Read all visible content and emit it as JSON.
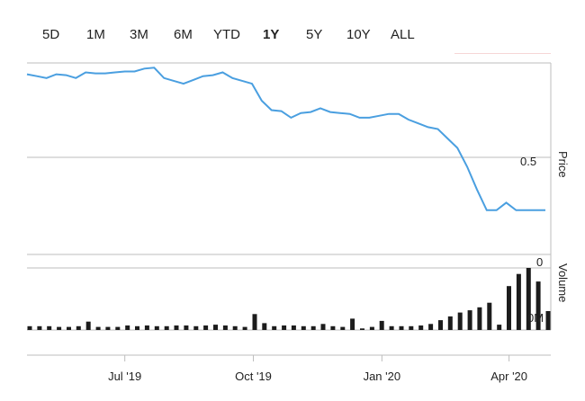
{
  "range_selector": {
    "buttons": [
      {
        "label": "5D",
        "active": false
      },
      {
        "label": "1M",
        "active": false
      },
      {
        "label": "3M",
        "active": false
      },
      {
        "label": "6M",
        "active": false
      },
      {
        "label": "YTD",
        "active": false
      },
      {
        "label": "1Y",
        "active": true
      },
      {
        "label": "5Y",
        "active": false
      },
      {
        "label": "10Y",
        "active": false
      },
      {
        "label": "ALL",
        "active": false
      }
    ]
  },
  "colors": {
    "price_line": "#4a9fe0",
    "volume_bar": "#1c1c1c",
    "grid": "#bdbdbd"
  },
  "chart_data": [
    {
      "type": "line",
      "ylabel": "Price",
      "yticks": [
        "0.5"
      ],
      "ylim": [
        0.0,
        1.0
      ],
      "x": [
        "2019-04-22",
        "2019-04-29",
        "2019-05-06",
        "2019-05-13",
        "2019-05-20",
        "2019-05-27",
        "2019-06-03",
        "2019-06-10",
        "2019-06-17",
        "2019-06-24",
        "2019-07-01",
        "2019-07-08",
        "2019-07-15",
        "2019-07-22",
        "2019-07-29",
        "2019-08-05",
        "2019-08-12",
        "2019-08-19",
        "2019-08-26",
        "2019-09-02",
        "2019-09-09",
        "2019-09-16",
        "2019-09-23",
        "2019-09-30",
        "2019-10-07",
        "2019-10-14",
        "2019-10-21",
        "2019-10-28",
        "2019-11-04",
        "2019-11-11",
        "2019-11-18",
        "2019-11-25",
        "2019-12-02",
        "2019-12-09",
        "2019-12-16",
        "2019-12-23",
        "2019-12-30",
        "2020-01-06",
        "2020-01-13",
        "2020-01-20",
        "2020-01-27",
        "2020-02-03",
        "2020-02-10",
        "2020-02-17",
        "2020-02-24",
        "2020-03-02",
        "2020-03-09",
        "2020-03-16",
        "2020-03-23",
        "2020-03-30",
        "2020-04-06",
        "2020-04-13",
        "2020-04-20",
        "2020-04-27"
      ],
      "series": [
        {
          "values": [
            0.94,
            0.93,
            0.92,
            0.94,
            0.935,
            0.92,
            0.95,
            0.945,
            0.945,
            0.95,
            0.955,
            0.955,
            0.97,
            0.975,
            0.92,
            0.905,
            0.89,
            0.91,
            0.93,
            0.935,
            0.95,
            0.92,
            0.905,
            0.89,
            0.8,
            0.75,
            0.745,
            0.71,
            0.735,
            0.74,
            0.76,
            0.74,
            0.735,
            0.73,
            0.71,
            0.71,
            0.72,
            0.73,
            0.73,
            0.7,
            0.68,
            0.66,
            0.65,
            0.6,
            0.55,
            0.45,
            0.33,
            0.22,
            0.22,
            0.26,
            0.22,
            0.22,
            0.22,
            0.22
          ]
        }
      ]
    },
    {
      "type": "bar",
      "ylabel": "Volume",
      "yticks": [
        "0",
        "0M"
      ],
      "x": [
        "2019-04-22",
        "2019-04-29",
        "2019-05-06",
        "2019-05-13",
        "2019-05-20",
        "2019-05-27",
        "2019-06-03",
        "2019-06-10",
        "2019-06-17",
        "2019-06-24",
        "2019-07-01",
        "2019-07-08",
        "2019-07-15",
        "2019-07-22",
        "2019-07-29",
        "2019-08-05",
        "2019-08-12",
        "2019-08-19",
        "2019-08-26",
        "2019-09-02",
        "2019-09-09",
        "2019-09-16",
        "2019-09-23",
        "2019-09-30",
        "2019-10-07",
        "2019-10-14",
        "2019-10-21",
        "2019-10-28",
        "2019-11-04",
        "2019-11-11",
        "2019-11-18",
        "2019-11-25",
        "2019-12-02",
        "2019-12-09",
        "2019-12-16",
        "2019-12-23",
        "2019-12-30",
        "2020-01-06",
        "2020-01-13",
        "2020-01-20",
        "2020-01-27",
        "2020-02-03",
        "2020-02-10",
        "2020-02-17",
        "2020-02-24",
        "2020-03-02",
        "2020-03-09",
        "2020-03-16",
        "2020-03-23",
        "2020-03-30",
        "2020-04-06",
        "2020-04-13",
        "2020-04-20",
        "2020-04-27"
      ],
      "series": [
        {
          "values": [
            0.05,
            0.05,
            0.05,
            0.04,
            0.04,
            0.05,
            0.11,
            0.04,
            0.04,
            0.04,
            0.06,
            0.05,
            0.06,
            0.05,
            0.05,
            0.06,
            0.06,
            0.05,
            0.06,
            0.07,
            0.06,
            0.05,
            0.04,
            0.21,
            0.09,
            0.05,
            0.06,
            0.06,
            0.05,
            0.05,
            0.08,
            0.05,
            0.04,
            0.15,
            0.02,
            0.04,
            0.12,
            0.05,
            0.05,
            0.05,
            0.06,
            0.08,
            0.13,
            0.18,
            0.23,
            0.26,
            0.3,
            0.36,
            0.07,
            0.58,
            0.74,
            0.82,
            0.64,
            0.25
          ]
        }
      ]
    }
  ],
  "x_axis": {
    "ticks": [
      {
        "label": "Jul '19",
        "date": "2019-07-01"
      },
      {
        "label": "Oct '19",
        "date": "2019-10-01"
      },
      {
        "label": "Jan '20",
        "date": "2020-01-01"
      },
      {
        "label": "Apr '20",
        "date": "2020-04-01"
      }
    ]
  }
}
